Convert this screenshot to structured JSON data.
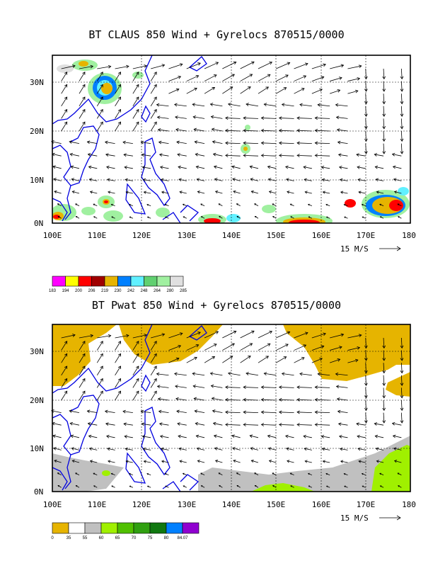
{
  "top_panel": {
    "title": "BT CLAUS 850 Wind + Gyrelocs 870515/0000",
    "lat_labels": [
      "30N",
      "20N",
      "10N",
      "0N"
    ],
    "lon_labels": [
      "100E",
      "110E",
      "120E",
      "130E",
      "140E",
      "150E",
      "160E",
      "170E",
      "180"
    ],
    "vector_scale_label": "15 M/S",
    "legend": {
      "colors": [
        "#ff00ff",
        "#ffff00",
        "#ff0000",
        "#a00000",
        "#e6b400",
        "#0080ff",
        "#60f0ff",
        "#60d070",
        "#a0f0a0",
        "#e0e0e0"
      ],
      "labels": [
        "183",
        "194",
        "200",
        "206",
        "219",
        "230",
        "242",
        "248",
        "264",
        "280",
        "285"
      ]
    }
  },
  "bottom_panel": {
    "title": "BT Pwat 850 Wind + Gyrelocs 870515/0000",
    "lat_labels": [
      "30N",
      "20N",
      "10N",
      "0N"
    ],
    "lon_labels": [
      "100E",
      "110E",
      "120E",
      "130E",
      "140E",
      "150E",
      "160E",
      "170E",
      "180"
    ],
    "vector_scale_label": "15 M/S",
    "legend": {
      "colors": [
        "#e6b400",
        "#ffffff",
        "#c0c0c0",
        "#a0f000",
        "#50c000",
        "#30a010",
        "#107810",
        "#0080ff",
        "#9000d0"
      ],
      "labels": [
        "0",
        "35",
        "55",
        "60",
        "65",
        "70",
        "75",
        "80",
        "84.07"
      ]
    }
  },
  "map": {
    "lon_range": [
      100,
      180
    ],
    "lat_range": [
      0,
      35
    ]
  }
}
